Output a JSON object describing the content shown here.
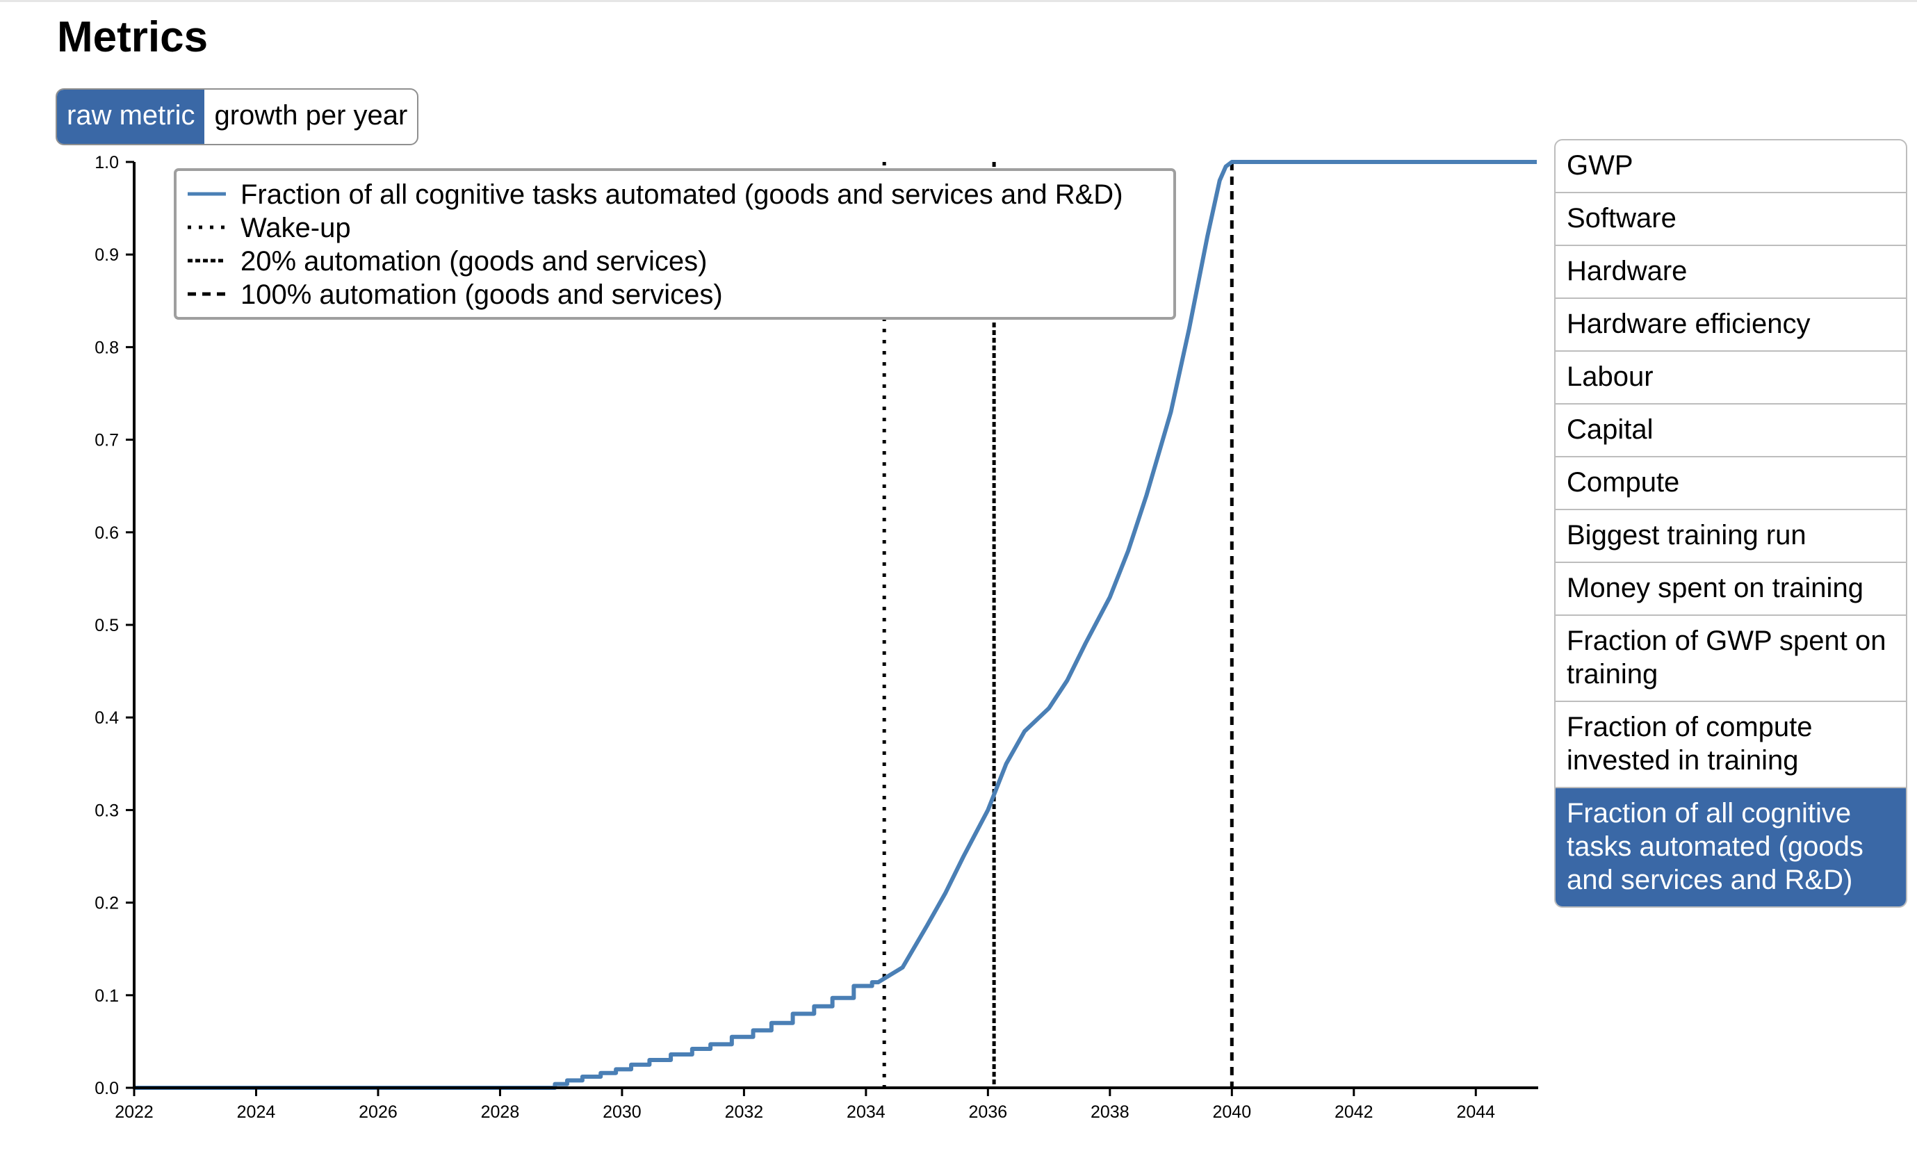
{
  "page": {
    "title": "Metrics"
  },
  "mode_toggle": {
    "options": [
      "raw metric",
      "growth per year"
    ],
    "selected": "raw metric"
  },
  "metrics_list": {
    "items": [
      "GWP",
      "Software",
      "Hardware",
      "Hardware efficiency",
      "Labour",
      "Capital",
      "Compute",
      "Biggest training run",
      "Money spent on training",
      "Fraction of GWP spent on training",
      "Fraction of compute invested in training",
      "Fraction of all cognitive tasks automated (goods and services and R&D)"
    ],
    "selected_index": 11
  },
  "colors": {
    "series": "#4a7fb5",
    "accent": "#3a68a6",
    "reference_lines": "#000000"
  },
  "chart_data": {
    "type": "line",
    "xlim": [
      2022,
      2045
    ],
    "ylim": [
      0,
      1.0
    ],
    "x_ticks": [
      2022,
      2024,
      2026,
      2028,
      2030,
      2032,
      2034,
      2036,
      2038,
      2040,
      2042,
      2044
    ],
    "y_ticks": [
      "0.0",
      "0.1",
      "0.2",
      "0.3",
      "0.4",
      "0.5",
      "0.6",
      "0.7",
      "0.8",
      "0.9",
      "1.0"
    ],
    "legend_position": "top-left",
    "grid": false,
    "series": [
      {
        "name": "Fraction of all cognitive tasks automated (goods and services and R&D)",
        "x": [
          2022,
          2028.8,
          2029.0,
          2029.2,
          2029.5,
          2029.8,
          2030.0,
          2030.3,
          2030.6,
          2031.0,
          2031.3,
          2031.6,
          2032.0,
          2032.3,
          2032.6,
          2033.0,
          2033.3,
          2033.6,
          2034.0,
          2034.2,
          2034.6,
          2035.0,
          2035.3,
          2035.6,
          2036.0,
          2036.3,
          2036.6,
          2037.0,
          2037.3,
          2037.6,
          2038.0,
          2038.3,
          2038.6,
          2039.0,
          2039.3,
          2039.6,
          2039.8,
          2039.9,
          2040,
          2045
        ],
        "y": [
          0.0,
          0.0,
          0.004,
          0.008,
          0.012,
          0.016,
          0.02,
          0.025,
          0.03,
          0.036,
          0.042,
          0.047,
          0.055,
          0.062,
          0.07,
          0.08,
          0.088,
          0.097,
          0.11,
          0.114,
          0.13,
          0.175,
          0.21,
          0.25,
          0.3,
          0.35,
          0.385,
          0.41,
          0.44,
          0.48,
          0.53,
          0.58,
          0.64,
          0.73,
          0.82,
          0.92,
          0.98,
          0.995,
          1.0,
          1.0
        ]
      }
    ],
    "reference_lines": [
      {
        "name": "Wake-up",
        "x": 2034.3,
        "style": "dotted"
      },
      {
        "name": "20% automation (goods and services)",
        "x": 2036.1,
        "style": "dense-dashed"
      },
      {
        "name": "100% automation (goods and services)",
        "x": 2040.0,
        "style": "dashed"
      }
    ]
  }
}
